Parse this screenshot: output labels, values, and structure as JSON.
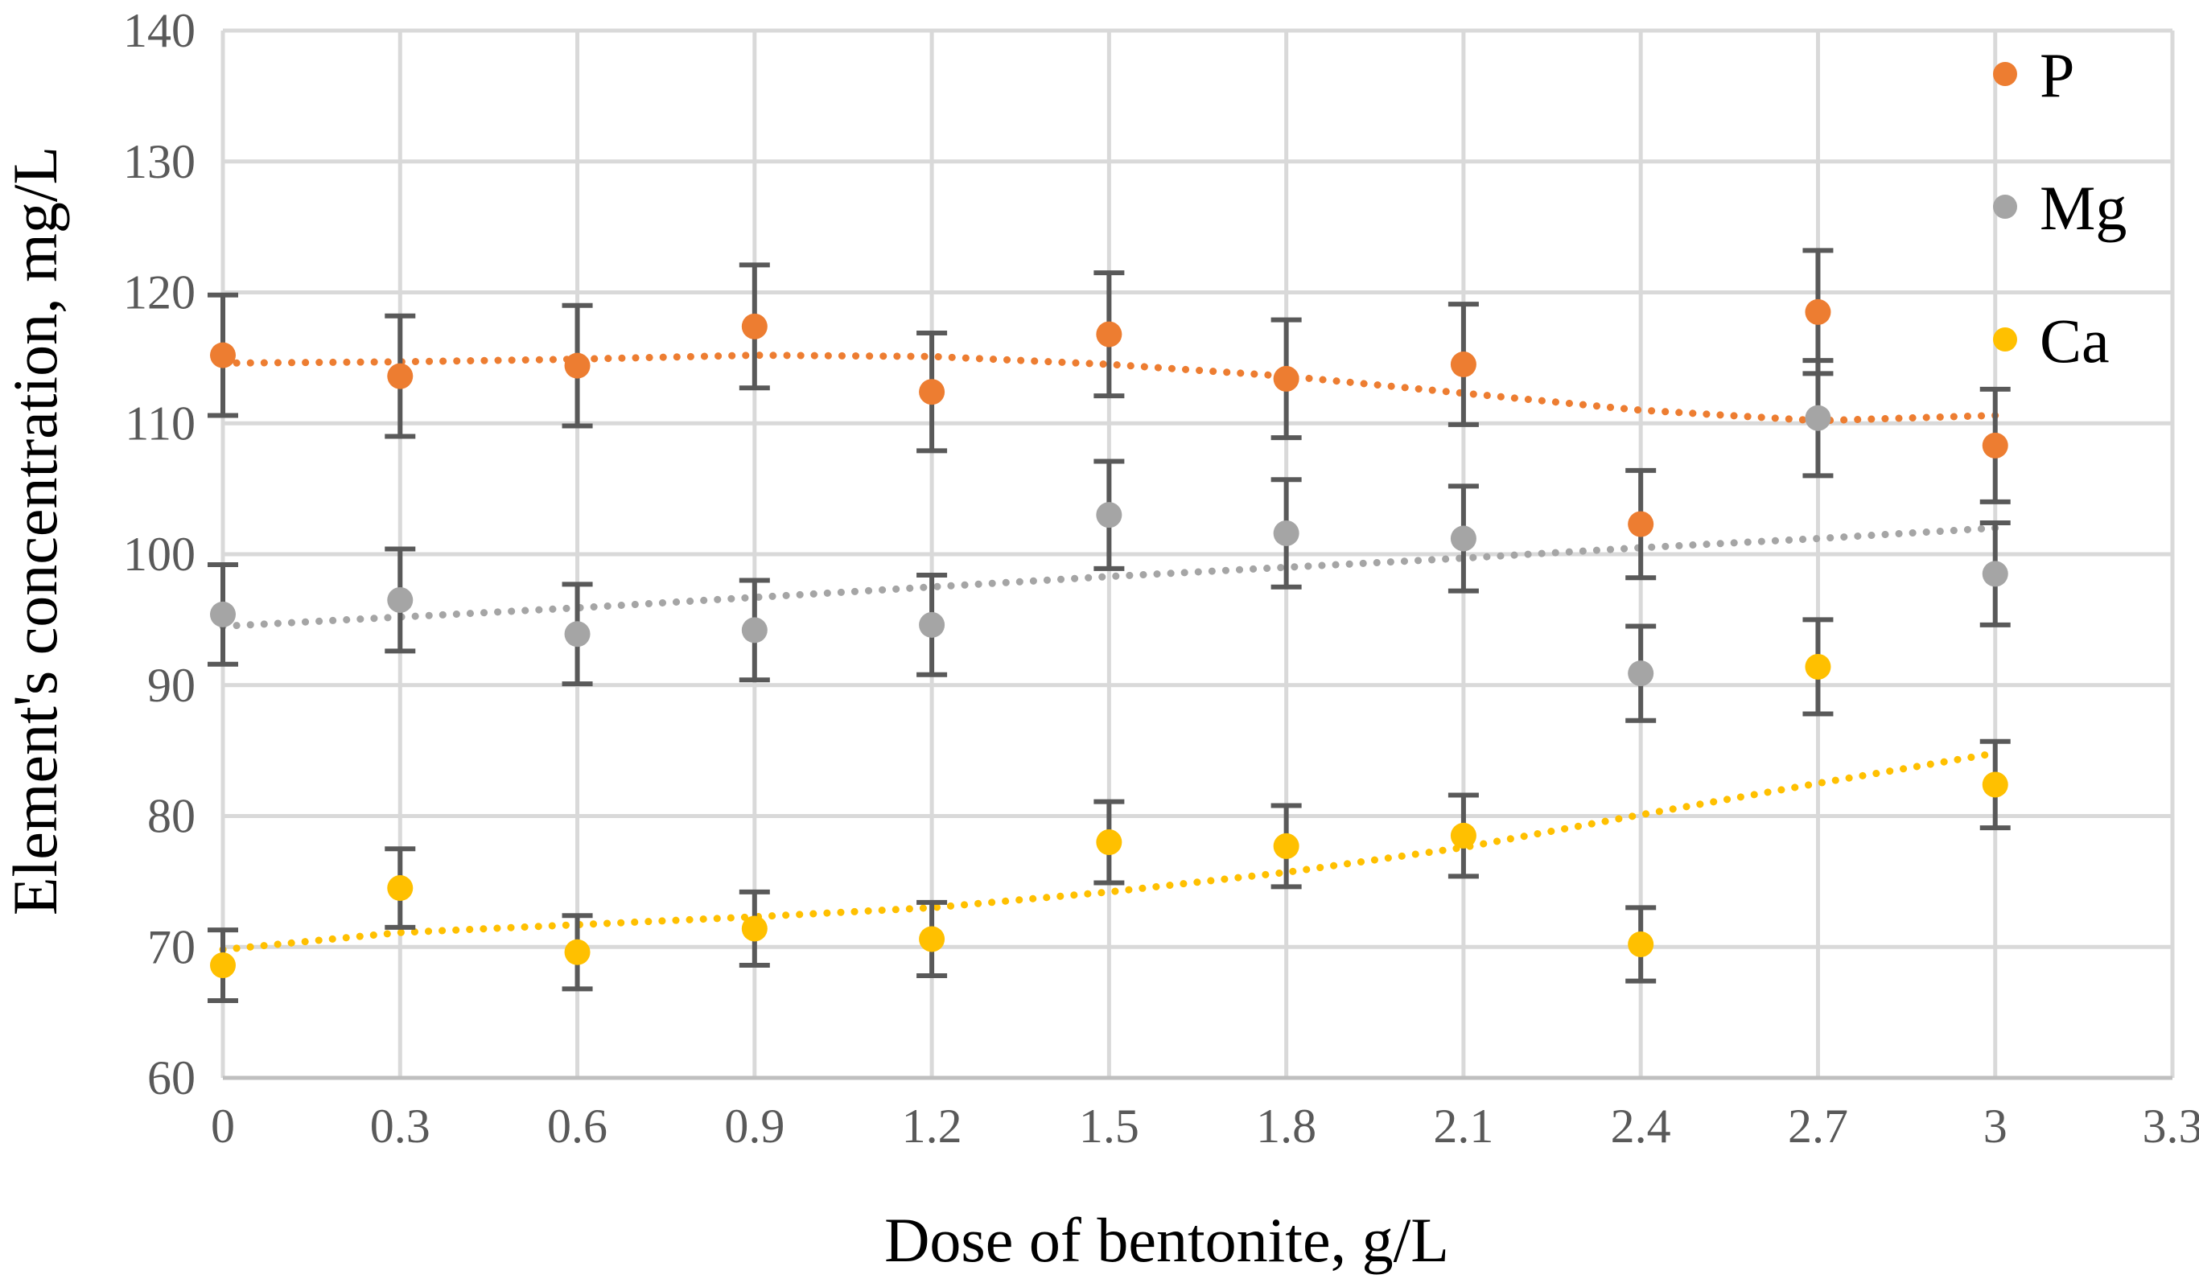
{
  "chart_data": {
    "type": "scatter",
    "title": "",
    "xlabel": "Dose of bentonite, g/L",
    "ylabel": "Element's concentration, mg/L",
    "xlim": [
      0,
      3.3
    ],
    "ylim": [
      60,
      140
    ],
    "x_ticks": [
      "0",
      "0.3",
      "0.6",
      "0.9",
      "1.2",
      "1.5",
      "1.8",
      "2.1",
      "2.4",
      "2.7",
      "3",
      "3.3"
    ],
    "y_ticks": [
      "60",
      "70",
      "80",
      "90",
      "100",
      "110",
      "120",
      "130",
      "140"
    ],
    "grid": true,
    "legend_position": "right",
    "x": [
      0,
      0.3,
      0.6,
      0.9,
      1.2,
      1.5,
      1.8,
      2.1,
      2.4,
      2.7,
      3
    ],
    "series": [
      {
        "name": "P",
        "color": "#ED7D31",
        "values": [
          115.2,
          113.6,
          114.4,
          117.4,
          112.4,
          116.8,
          113.4,
          114.5,
          102.3,
          118.5,
          108.3
        ],
        "error": [
          4.6,
          4.6,
          4.6,
          4.7,
          4.5,
          4.7,
          4.5,
          4.6,
          4.1,
          4.7,
          4.3
        ],
        "trend": [
          114.6,
          114.7,
          114.9,
          115.2,
          115.1,
          114.5,
          113.6,
          112.3,
          111.0,
          110.2,
          110.6
        ]
      },
      {
        "name": "Mg",
        "color": "#A5A5A5",
        "values": [
          95.4,
          96.5,
          93.9,
          94.2,
          94.6,
          103.0,
          101.6,
          101.2,
          90.9,
          110.4,
          98.5
        ],
        "error": [
          3.8,
          3.9,
          3.8,
          3.8,
          3.8,
          4.1,
          4.1,
          4.0,
          3.6,
          4.4,
          3.9
        ],
        "trend": [
          94.5,
          95.2,
          95.9,
          96.7,
          97.5,
          98.3,
          99.0,
          99.7,
          100.5,
          101.2,
          102.0
        ]
      },
      {
        "name": "Ca",
        "color": "#FFC000",
        "values": [
          68.6,
          74.5,
          69.6,
          71.4,
          70.6,
          78.0,
          77.7,
          78.5,
          70.2,
          91.4,
          82.4
        ],
        "error": [
          2.7,
          3.0,
          2.8,
          2.8,
          2.8,
          3.1,
          3.1,
          3.1,
          2.8,
          3.6,
          3.3
        ],
        "trend": [
          69.8,
          71.1,
          71.7,
          72.3,
          73.0,
          74.2,
          75.7,
          77.6,
          80.1,
          82.5,
          84.8
        ]
      }
    ]
  }
}
